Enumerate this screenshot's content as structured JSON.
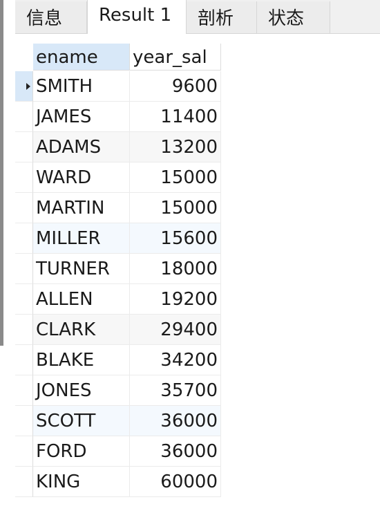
{
  "tabs": [
    {
      "label": "信息",
      "active": false
    },
    {
      "label": "Result 1",
      "active": true
    },
    {
      "label": "剖析",
      "active": false
    },
    {
      "label": "状态",
      "active": false
    }
  ],
  "columns": [
    "ename",
    "year_sal"
  ],
  "rows": [
    {
      "ename": "SMITH",
      "year_sal": "9600"
    },
    {
      "ename": "JAMES",
      "year_sal": "11400"
    },
    {
      "ename": "ADAMS",
      "year_sal": "13200"
    },
    {
      "ename": "WARD",
      "year_sal": "15000"
    },
    {
      "ename": "MARTIN",
      "year_sal": "15000"
    },
    {
      "ename": "MILLER",
      "year_sal": "15600"
    },
    {
      "ename": "TURNER",
      "year_sal": "18000"
    },
    {
      "ename": "ALLEN",
      "year_sal": "19200"
    },
    {
      "ename": "CLARK",
      "year_sal": "29400"
    },
    {
      "ename": "BLAKE",
      "year_sal": "34200"
    },
    {
      "ename": "JONES",
      "year_sal": "35700"
    },
    {
      "ename": "SCOTT",
      "year_sal": "36000"
    },
    {
      "ename": "FORD",
      "year_sal": "36000"
    },
    {
      "ename": "KING",
      "year_sal": "60000"
    }
  ],
  "current_row": 0,
  "colors": {
    "selection": "#d8e8f8",
    "tab_bar": "#f0f0f0"
  }
}
